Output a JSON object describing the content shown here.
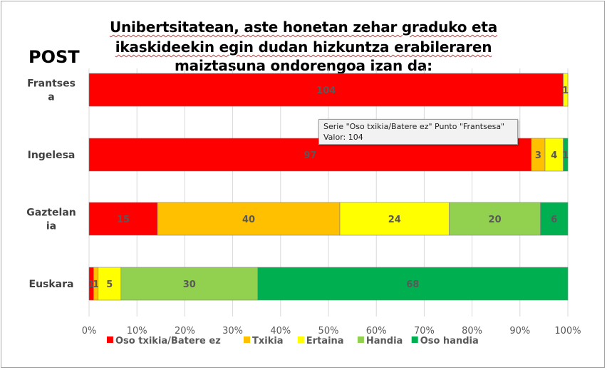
{
  "post_label": "POST",
  "title_lines": [
    "Unibertsitatean, aste honetan zehar graduko eta",
    "ikaskideekin egin dudan hizkuntza erabileraren",
    "maiztasuna ondorengoa izan da:"
  ],
  "tooltip": {
    "line1": "Serie \"Oso txikia/Batere ez\" Punto \"Frantsesa\"",
    "line2": "Valor: 104"
  },
  "chart_data": {
    "type": "bar",
    "orientation": "horizontal",
    "stacked": "percent",
    "categories": [
      [
        "Frantses",
        "a"
      ],
      [
        "Ingelesa"
      ],
      [
        "Gaztelan",
        "ia"
      ],
      [
        "Euskara"
      ]
    ],
    "series": [
      {
        "name": "Oso txikia/Batere ez",
        "color": "#ff0000",
        "values": [
          104,
          97,
          15,
          1
        ]
      },
      {
        "name": "Txikia",
        "color": "#ffc000",
        "values": [
          0,
          3,
          40,
          1
        ]
      },
      {
        "name": "Ertaina",
        "color": "#ffff00",
        "values": [
          1,
          4,
          24,
          5
        ]
      },
      {
        "name": "Handia",
        "color": "#92d050",
        "values": [
          0,
          0,
          20,
          30
        ]
      },
      {
        "name": "Oso handia",
        "color": "#00b050",
        "values": [
          0,
          1,
          6,
          68
        ]
      }
    ],
    "x_ticks": [
      "0%",
      "10%",
      "20%",
      "30%",
      "40%",
      "50%",
      "60%",
      "70%",
      "80%",
      "90%",
      "100%"
    ],
    "xlim": [
      0,
      100
    ],
    "grid": true,
    "legend_position": "bottom"
  }
}
